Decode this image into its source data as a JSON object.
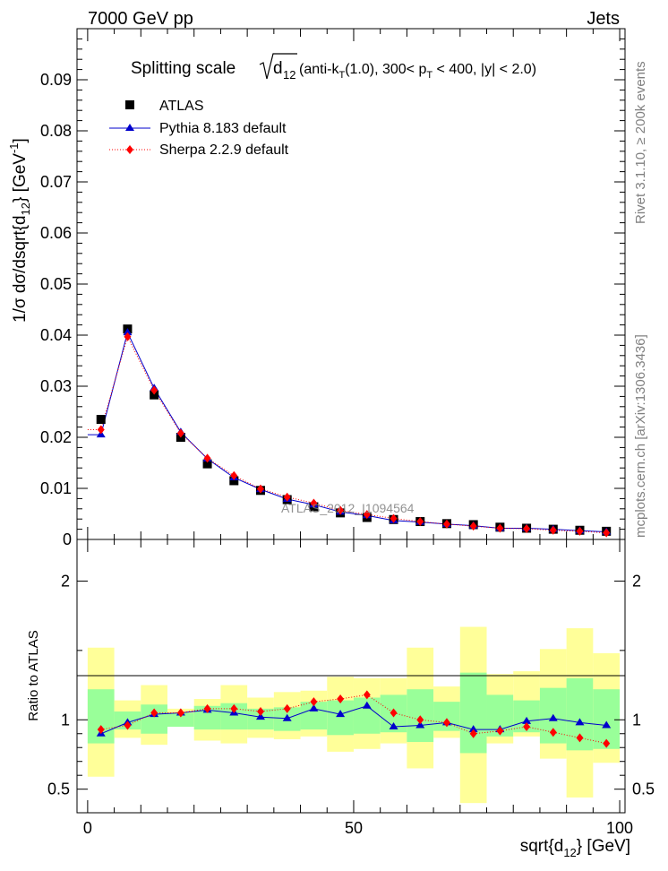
{
  "header": {
    "energy": "7000 GeV pp",
    "category": "Jets"
  },
  "side_labels": {
    "rivet": "Rivet 3.1.10, ≥ 200k events",
    "mcplots": "mcplots.cern.ch [arXiv:1306.3436]"
  },
  "chart_data": [
    {
      "type": "line",
      "title": "Splitting scale √d12 (anti-kT(1.0), 300< pT < 400, |y| < 2.0)",
      "title_parts": {
        "prefix": "Splitting scale ",
        "var": "d",
        "var_sub": "12",
        "p1": " (anti-k",
        "kt_sub": "T",
        "p2": "(1.0), 300< p",
        "pt_sub": "T",
        "p3": " < 400, |y| < 2.0)"
      },
      "ylabel": "1/σ dσ/dsqrt{d12} [GeV-1]",
      "ylabel_parts": {
        "main": "1/σ dσ/dsqrt{d",
        "sub": "12",
        "mid": "} [GeV",
        "sup": "-1",
        "end": "]"
      },
      "watermark": "ATLAS_2012_I1094564",
      "xlim": [
        -2,
        101
      ],
      "ylim": [
        0,
        0.1
      ],
      "yticks": [
        "0",
        "0.01",
        "0.02",
        "0.03",
        "0.04",
        "0.05",
        "0.06",
        "0.07",
        "0.08",
        "0.09"
      ],
      "legend_position": "top-left",
      "x": [
        2.5,
        7.5,
        12.5,
        17.5,
        22.5,
        27.5,
        32.5,
        37.5,
        42.5,
        47.5,
        52.5,
        57.5,
        62.5,
        67.5,
        72.5,
        77.5,
        82.5,
        87.5,
        92.5,
        97.5
      ],
      "series": [
        {
          "name": "ATLAS",
          "marker": "square",
          "color": "#000000",
          "values": [
            0.0235,
            0.0412,
            0.0283,
            0.02,
            0.0148,
            0.0115,
            0.0096,
            0.0078,
            0.0064,
            0.0052,
            0.0043,
            0.0039,
            0.0035,
            0.0031,
            0.0029,
            0.0024,
            0.0022,
            0.002,
            0.0018,
            0.0016
          ]
        },
        {
          "name": "Pythia 8.183 default",
          "marker": "triangle",
          "color": "#0000cc",
          "values": [
            0.0205,
            0.0405,
            0.0296,
            0.021,
            0.0158,
            0.0121,
            0.0098,
            0.0079,
            0.0068,
            0.0054,
            0.0047,
            0.0037,
            0.0034,
            0.003,
            0.0027,
            0.0022,
            0.0022,
            0.002,
            0.0017,
            0.0015
          ]
        },
        {
          "name": "Sherpa 2.2.9 default",
          "marker": "diamond",
          "color": "#ff0000",
          "values": [
            0.0215,
            0.0397,
            0.0292,
            0.0208,
            0.0159,
            0.0125,
            0.0099,
            0.0083,
            0.0071,
            0.0057,
            0.0049,
            0.0041,
            0.0035,
            0.003,
            0.0026,
            0.0022,
            0.0021,
            0.0018,
            0.0016,
            0.0013
          ]
        }
      ]
    },
    {
      "type": "line",
      "ylabel": "Ratio to ATLAS",
      "xlabel": "sqrt{d12} [GeV]",
      "xlabel_parts": {
        "main": "sqrt{d",
        "sub": "12",
        "end": "} [GeV]"
      },
      "xlim": [
        -2,
        101
      ],
      "ylim": [
        0.33,
        2.3
      ],
      "xticks": [
        "0",
        "50",
        "100"
      ],
      "yticks": [
        "0.5",
        "1",
        "2"
      ],
      "x": [
        2.5,
        7.5,
        12.5,
        17.5,
        22.5,
        27.5,
        32.5,
        37.5,
        42.5,
        47.5,
        52.5,
        57.5,
        62.5,
        67.5,
        72.5,
        77.5,
        82.5,
        87.5,
        92.5,
        97.5
      ],
      "bands": {
        "stat_sys_green": [
          [
            0.83,
            1.22
          ],
          [
            0.93,
            1.06
          ],
          [
            0.9,
            1.11
          ],
          [
            0.95,
            1.05
          ],
          [
            0.93,
            1.1
          ],
          [
            0.93,
            1.12
          ],
          [
            0.93,
            1.08
          ],
          [
            0.92,
            1.09
          ],
          [
            0.93,
            1.13
          ],
          [
            0.89,
            1.14
          ],
          [
            0.9,
            1.16
          ],
          [
            0.91,
            1.18
          ],
          [
            0.84,
            1.22
          ],
          [
            0.92,
            1.13
          ],
          [
            0.76,
            1.34
          ],
          [
            0.88,
            1.18
          ],
          [
            0.91,
            1.14
          ],
          [
            0.83,
            1.23
          ],
          [
            0.78,
            1.3
          ],
          [
            0.79,
            1.22
          ]
        ],
        "total_yellow": [
          [
            0.59,
            1.52
          ],
          [
            0.87,
            1.14
          ],
          [
            0.82,
            1.25
          ],
          [
            0.95,
            1.08
          ],
          [
            0.85,
            1.15
          ],
          [
            0.83,
            1.25
          ],
          [
            0.87,
            1.16
          ],
          [
            0.86,
            1.2
          ],
          [
            0.88,
            1.21
          ],
          [
            0.77,
            1.31
          ],
          [
            0.79,
            1.3
          ],
          [
            0.83,
            1.3
          ],
          [
            0.65,
            1.52
          ],
          [
            0.87,
            1.24
          ],
          [
            0.4,
            1.67
          ],
          [
            0.83,
            1.33
          ],
          [
            0.88,
            1.35
          ],
          [
            0.72,
            1.51
          ],
          [
            0.44,
            1.66
          ],
          [
            0.69,
            1.48
          ]
        ]
      },
      "series": [
        {
          "name": "Pythia 8.183 default",
          "color": "#0000cc",
          "values": [
            0.9,
            0.98,
            1.04,
            1.05,
            1.07,
            1.05,
            1.02,
            1.01,
            1.08,
            1.04,
            1.1,
            0.95,
            0.96,
            0.98,
            0.93,
            0.93,
            0.99,
            1.01,
            0.98,
            0.96
          ]
        },
        {
          "name": "Sherpa 2.2.9 default",
          "color": "#ff0000",
          "values": [
            0.93,
            0.96,
            1.05,
            1.05,
            1.08,
            1.08,
            1.06,
            1.08,
            1.13,
            1.15,
            1.18,
            1.05,
            1.0,
            0.98,
            0.9,
            0.92,
            0.95,
            0.91,
            0.87,
            0.83
          ]
        }
      ]
    }
  ]
}
